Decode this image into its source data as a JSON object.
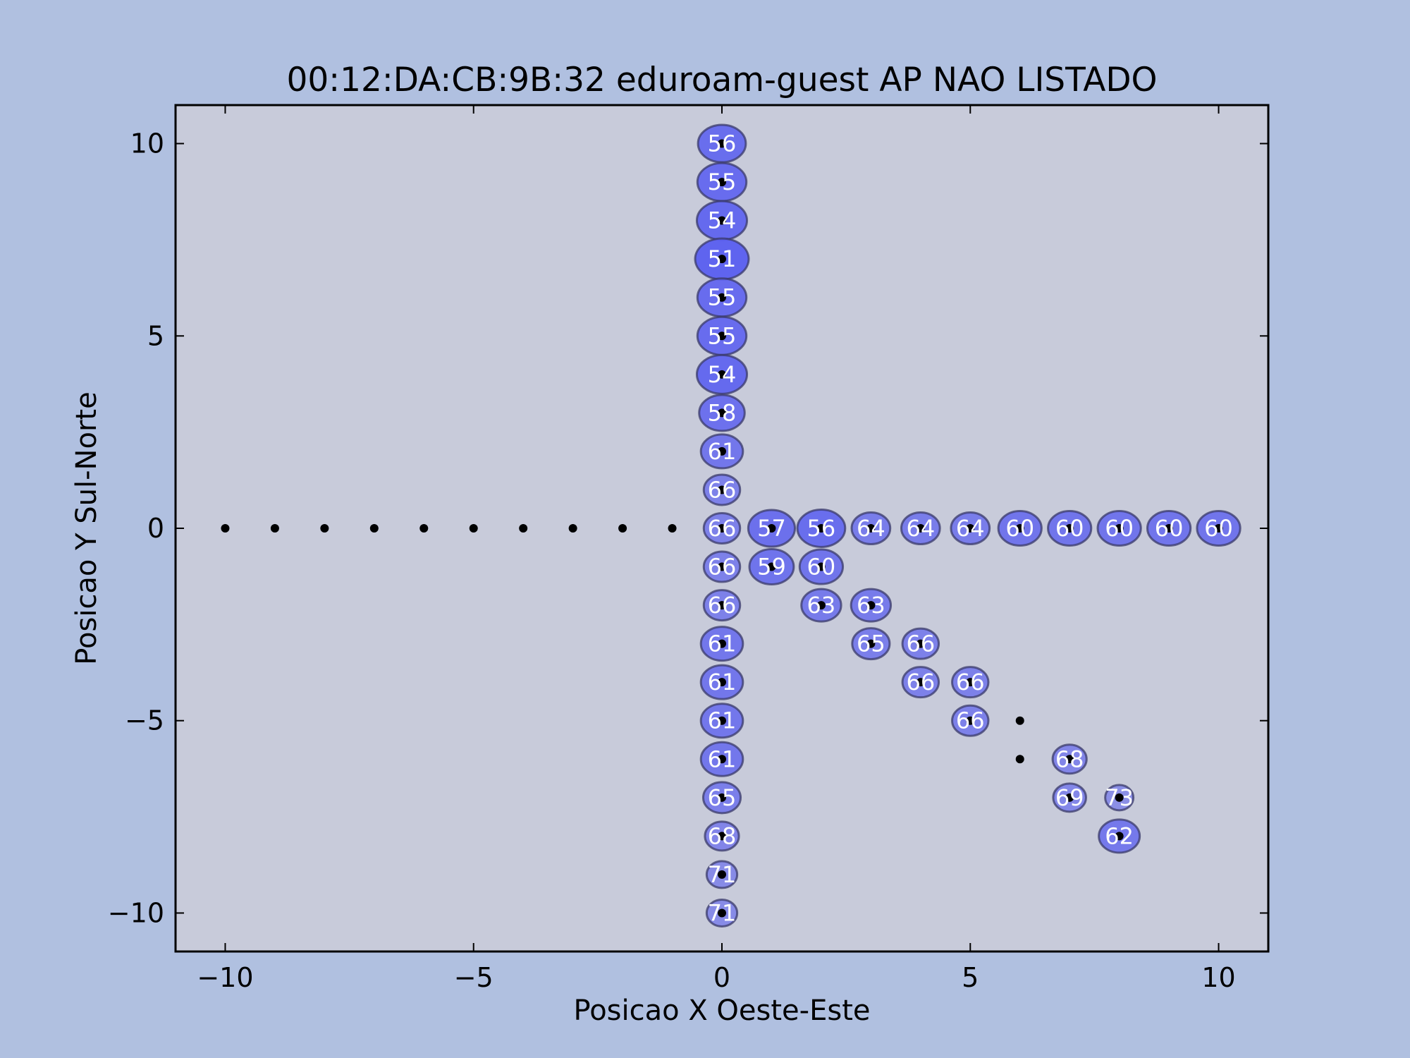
{
  "chart_data": {
    "type": "scatter",
    "title": "00:12:DA:CB:9B:32 eduroam-guest AP NAO LISTADO",
    "xlabel": "Posicao X Oeste-Este",
    "ylabel": "Posicao Y Sul-Norte",
    "xlim": [
      -11,
      11
    ],
    "ylim": [
      -11,
      11
    ],
    "xticks": [
      -10,
      -5,
      0,
      5,
      10
    ],
    "yticks": [
      -10,
      -5,
      0,
      5,
      10
    ],
    "xtick_labels": [
      "−10",
      "−5",
      "0",
      "5",
      "10"
    ],
    "ytick_labels": [
      "−10",
      "−5",
      "0",
      "5",
      "10"
    ],
    "grid": false,
    "colors": {
      "figure_bg": "#b0c0e0",
      "axes_bg": "#c8cbda",
      "bubble_fill": "#5a5ef0",
      "bubble_edge": "#3a3a6a",
      "point": "#000000",
      "label": "#ffffff"
    },
    "measurement_points": [
      [
        -10,
        0
      ],
      [
        -9,
        0
      ],
      [
        -8,
        0
      ],
      [
        -7,
        0
      ],
      [
        -6,
        0
      ],
      [
        -5,
        0
      ],
      [
        -4,
        0
      ],
      [
        -3,
        0
      ],
      [
        -2,
        0
      ],
      [
        -1,
        0
      ],
      [
        0,
        10
      ],
      [
        0,
        9
      ],
      [
        0,
        8
      ],
      [
        0,
        7
      ],
      [
        0,
        6
      ],
      [
        0,
        5
      ],
      [
        0,
        4
      ],
      [
        0,
        3
      ],
      [
        0,
        2
      ],
      [
        0,
        1
      ],
      [
        0,
        0
      ],
      [
        0,
        -1
      ],
      [
        0,
        -2
      ],
      [
        0,
        -3
      ],
      [
        0,
        -4
      ],
      [
        0,
        -5
      ],
      [
        0,
        -6
      ],
      [
        0,
        -7
      ],
      [
        0,
        -8
      ],
      [
        0,
        -9
      ],
      [
        0,
        -10
      ],
      [
        1,
        0
      ],
      [
        2,
        0
      ],
      [
        3,
        0
      ],
      [
        4,
        0
      ],
      [
        5,
        0
      ],
      [
        6,
        0
      ],
      [
        7,
        0
      ],
      [
        8,
        0
      ],
      [
        9,
        0
      ],
      [
        10,
        0
      ],
      [
        1,
        -1
      ],
      [
        2,
        -1
      ],
      [
        2,
        -2
      ],
      [
        3,
        -2
      ],
      [
        3,
        -3
      ],
      [
        4,
        -3
      ],
      [
        4,
        -4
      ],
      [
        5,
        -4
      ],
      [
        5,
        -5
      ],
      [
        6,
        -5
      ],
      [
        6,
        -6
      ],
      [
        7,
        -6
      ],
      [
        7,
        -7
      ],
      [
        8,
        -7
      ],
      [
        8,
        -8
      ]
    ],
    "readings": [
      {
        "x": 0,
        "y": 10,
        "value": "56"
      },
      {
        "x": 0,
        "y": 9,
        "value": "55"
      },
      {
        "x": 0,
        "y": 8,
        "value": "54"
      },
      {
        "x": 0,
        "y": 7,
        "value": "51"
      },
      {
        "x": 0,
        "y": 6,
        "value": "55"
      },
      {
        "x": 0,
        "y": 5,
        "value": "55"
      },
      {
        "x": 0,
        "y": 4,
        "value": "54"
      },
      {
        "x": 0,
        "y": 3,
        "value": "58"
      },
      {
        "x": 0,
        "y": 2,
        "value": "61"
      },
      {
        "x": 0,
        "y": 1,
        "value": "66"
      },
      {
        "x": 0,
        "y": 0,
        "value": "66"
      },
      {
        "x": 0,
        "y": -1,
        "value": "66"
      },
      {
        "x": 0,
        "y": -2,
        "value": "66"
      },
      {
        "x": 0,
        "y": -3,
        "value": "61"
      },
      {
        "x": 0,
        "y": -4,
        "value": "61"
      },
      {
        "x": 0,
        "y": -5,
        "value": "61"
      },
      {
        "x": 0,
        "y": -6,
        "value": "61"
      },
      {
        "x": 0,
        "y": -7,
        "value": "65"
      },
      {
        "x": 0,
        "y": -8,
        "value": "68"
      },
      {
        "x": 0,
        "y": -9,
        "value": "71"
      },
      {
        "x": 0,
        "y": -10,
        "value": "71"
      },
      {
        "x": 1,
        "y": 0,
        "value": "57"
      },
      {
        "x": 2,
        "y": 0,
        "value": "56"
      },
      {
        "x": 3,
        "y": 0,
        "value": "64"
      },
      {
        "x": 4,
        "y": 0,
        "value": "64"
      },
      {
        "x": 5,
        "y": 0,
        "value": "64"
      },
      {
        "x": 6,
        "y": 0,
        "value": "60"
      },
      {
        "x": 7,
        "y": 0,
        "value": "60"
      },
      {
        "x": 8,
        "y": 0,
        "value": "60"
      },
      {
        "x": 9,
        "y": 0,
        "value": "60"
      },
      {
        "x": 10,
        "y": 0,
        "value": "60"
      },
      {
        "x": 1,
        "y": -1,
        "value": "59"
      },
      {
        "x": 2,
        "y": -1,
        "value": "60"
      },
      {
        "x": 2,
        "y": -2,
        "value": "63"
      },
      {
        "x": 3,
        "y": -2,
        "value": "63"
      },
      {
        "x": 3,
        "y": -3,
        "value": "65"
      },
      {
        "x": 4,
        "y": -3,
        "value": "66"
      },
      {
        "x": 4,
        "y": -4,
        "value": "66"
      },
      {
        "x": 5,
        "y": -4,
        "value": "66"
      },
      {
        "x": 5,
        "y": -5,
        "value": "66"
      },
      {
        "x": 7,
        "y": -6,
        "value": "68"
      },
      {
        "x": 7,
        "y": -7,
        "value": "69"
      },
      {
        "x": 8,
        "y": -7,
        "value": "73"
      },
      {
        "x": 8,
        "y": -8,
        "value": "62"
      }
    ]
  }
}
